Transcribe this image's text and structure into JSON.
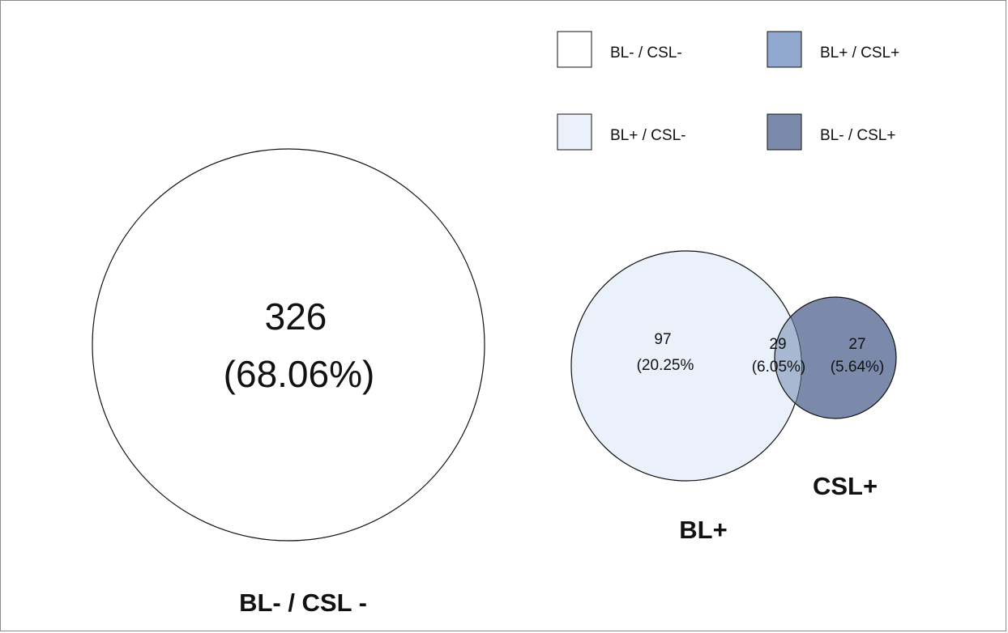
{
  "legend": {
    "items": [
      {
        "label": "BL- / CSL-",
        "color": "#ffffff"
      },
      {
        "label": "BL+ / CSL+",
        "color": "#92a9cf"
      },
      {
        "label": "BL+ / CSL-",
        "color": "#ebf1fb"
      },
      {
        "label": "BL- / CSL+",
        "color": "#7b8aab"
      }
    ]
  },
  "regions": {
    "neg": {
      "count": "326",
      "percent": "(68.06%)",
      "label": "BL- / CSL -",
      "color": "#ffffff"
    },
    "bl_only": {
      "count": "97",
      "percent": "(20.25%",
      "color": "#ebf1fb"
    },
    "both": {
      "count": "29",
      "percent": "(6.05%)",
      "color": "#a8b8d2"
    },
    "csl_only": {
      "count": "27",
      "percent": "(5.64%)",
      "color": "#7b8aab"
    }
  },
  "set_labels": {
    "bl": "BL+",
    "csl": "CSL+"
  }
}
